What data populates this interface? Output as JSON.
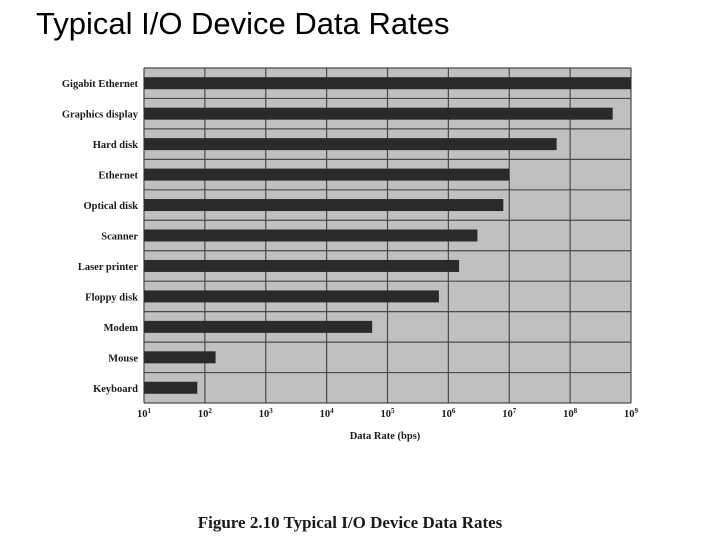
{
  "slide_title": "Typical I/O Device Data Rates",
  "caption": "Figure 2.10  Typical I/O Device Data Rates",
  "colors": {
    "plot_bg": "#c0c0c0",
    "bar": "#2a2a2a",
    "grid": "#4a4a4a",
    "text": "#1a1a1a"
  },
  "chart_data": {
    "type": "bar",
    "orientation": "horizontal",
    "title": "",
    "xlabel": "Data Rate (bps)",
    "ylabel": "",
    "x_scale": "log",
    "xlim": [
      10,
      1000000000
    ],
    "x_ticks": [
      {
        "base": "10",
        "exp": "1"
      },
      {
        "base": "10",
        "exp": "2"
      },
      {
        "base": "10",
        "exp": "3"
      },
      {
        "base": "10",
        "exp": "4"
      },
      {
        "base": "10",
        "exp": "5"
      },
      {
        "base": "10",
        "exp": "6"
      },
      {
        "base": "10",
        "exp": "7"
      },
      {
        "base": "10",
        "exp": "8"
      },
      {
        "base": "10",
        "exp": "9"
      }
    ],
    "grid": true,
    "categories": [
      "Gigabit Ethernet",
      "Graphics display",
      "Hard disk",
      "Ethernet",
      "Optical disk",
      "Scanner",
      "Laser printer",
      "Floppy disk",
      "Modem",
      "Mouse",
      "Keyboard"
    ],
    "values": [
      1000000000,
      500000000,
      60000000,
      10000000,
      8000000,
      3000000,
      1500000,
      700000,
      56000,
      150,
      75
    ]
  }
}
